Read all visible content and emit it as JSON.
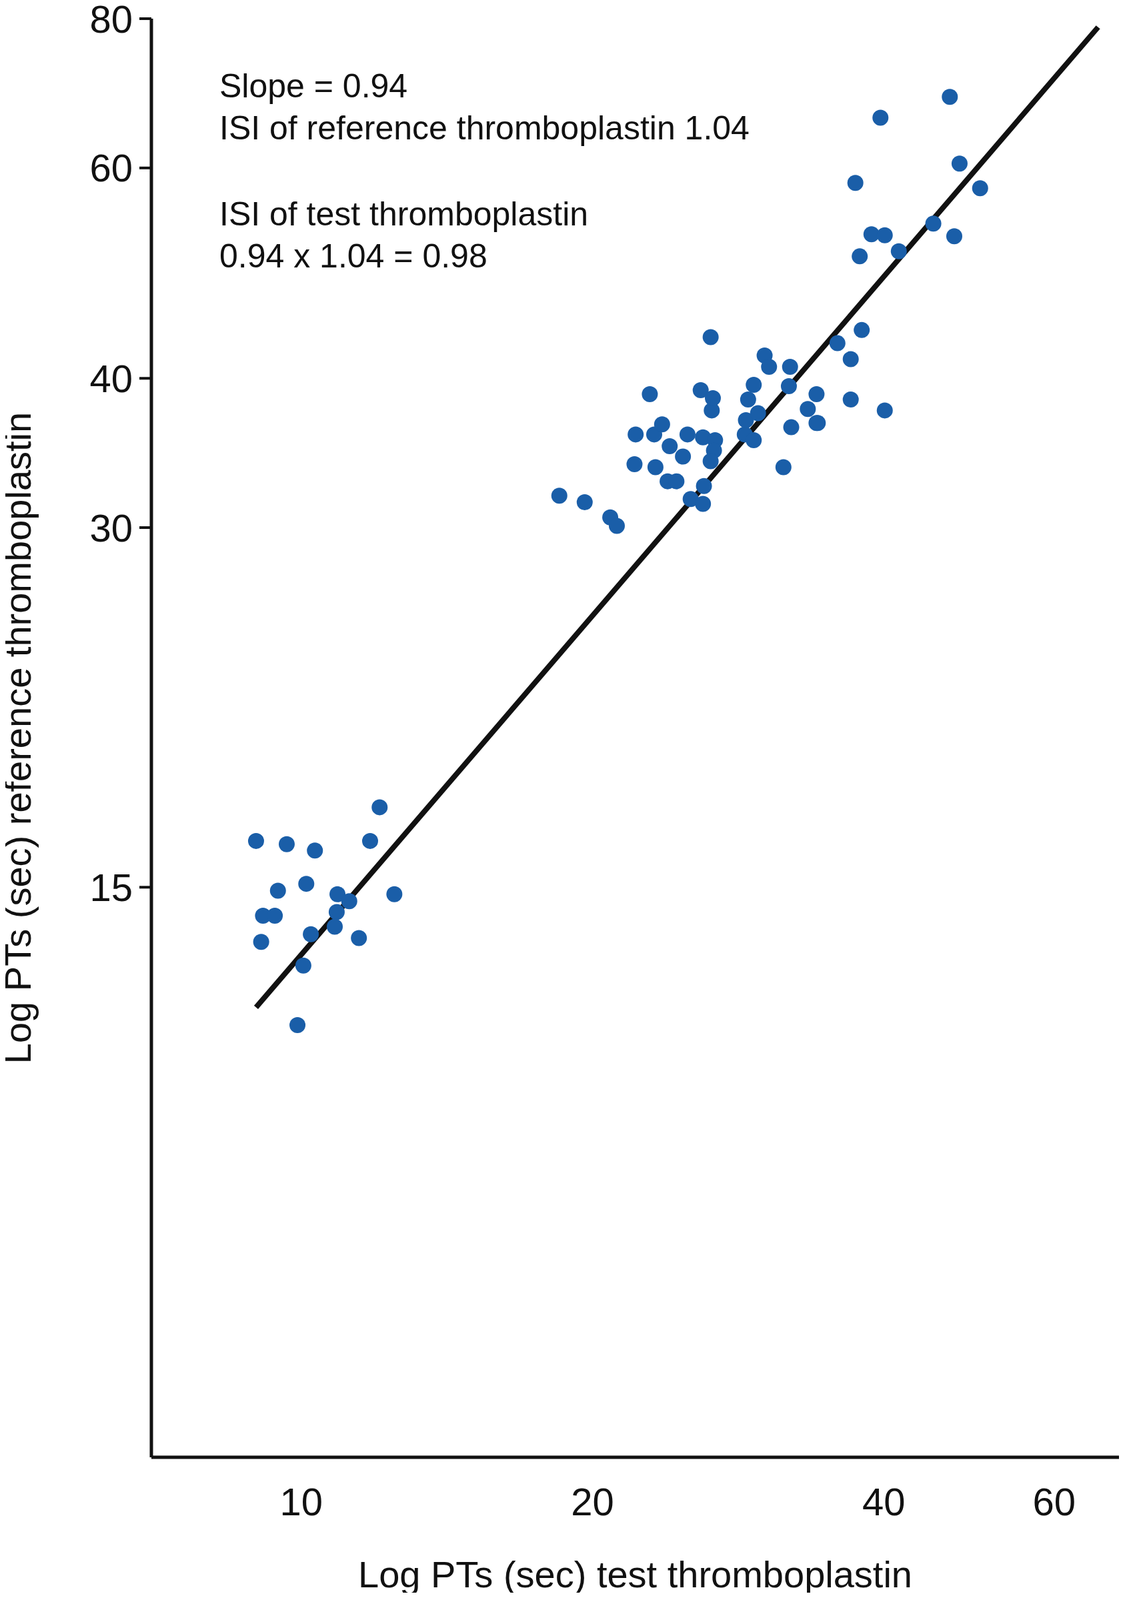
{
  "chart_data": {
    "type": "scatter",
    "x_label": "Log PTs (sec) test thromboplastin",
    "y_label": "Log PTs (sec) reference thromboplastin",
    "annotations": [
      [
        "Slope = 0.94",
        "ISI of reference thromboplastin 1.04"
      ],
      [
        "ISI of test thromboplastin",
        "0.94 x 1.04 = 0.98"
      ]
    ],
    "log": true,
    "grid": false,
    "color": "#1a5ea8",
    "marker": "circle",
    "xlim": [
      7,
      70
    ],
    "ylim": [
      5,
      80
    ],
    "xticks": [
      10,
      20,
      40,
      60
    ],
    "yticks": [
      15,
      30,
      40,
      60,
      80
    ],
    "x": [
      8.98,
      9.66,
      10.33,
      12.05,
      11.78,
      9.46,
      10.12,
      9.13,
      9.39,
      10.9,
      11.21,
      10.88,
      12.48,
      9.09,
      10.23,
      10.83,
      11.47,
      10.05,
      9.91,
      18.48,
      19.63,
      20.86,
      21.19,
      22.16,
      23.16,
      23.6,
      22.92,
      22.1,
      23.23,
      24.03,
      24.8,
      25.07,
      23.91,
      24.42,
      25.26,
      26.07,
      26.01,
      25.87,
      26.01,
      26.56,
      26.63,
      26.77,
      26.7,
      26.49,
      26.49,
      28.73,
      28.81,
      28.96,
      29.35,
      29.35,
      29.65,
      30.12,
      30.44,
      31.5,
      31.91,
      32.0,
      32.09,
      33.38,
      34.08,
      34.18,
      34.08,
      35.82,
      36.97,
      36.97,
      37.95,
      40.09,
      37.38,
      38.84,
      40.09,
      37.77,
      41.45,
      39.68,
      45.0,
      46.8,
      47.3,
      47.9,
      50.3
    ],
    "y": [
      16.4,
      16.3,
      16.1,
      17.5,
      16.4,
      14.9,
      15.1,
      14.2,
      14.2,
      14.8,
      14.6,
      14.3,
      14.8,
      13.5,
      13.7,
      13.9,
      13.6,
      12.9,
      11.5,
      31.9,
      31.5,
      30.6,
      30.1,
      35.9,
      35.9,
      36.6,
      38.8,
      33.9,
      33.7,
      35.1,
      34.4,
      35.9,
      32.8,
      32.8,
      31.7,
      32.5,
      31.4,
      39.1,
      35.7,
      37.6,
      38.5,
      35.5,
      34.8,
      34.1,
      43.3,
      35.9,
      36.9,
      38.4,
      39.5,
      35.5,
      37.4,
      41.8,
      40.9,
      33.7,
      39.4,
      40.9,
      36.4,
      37.7,
      38.8,
      36.7,
      36.7,
      42.8,
      41.5,
      38.4,
      43.9,
      37.6,
      58.3,
      52.8,
      52.7,
      50.6,
      51.1,
      66.1,
      53.9,
      68.8,
      52.6,
      60.5,
      57.7
    ],
    "fit_line": {
      "x": [
        8.98,
        66.6
      ],
      "y": [
        11.9,
        78.7
      ],
      "color": "#111111",
      "line_style": "solid"
    }
  }
}
